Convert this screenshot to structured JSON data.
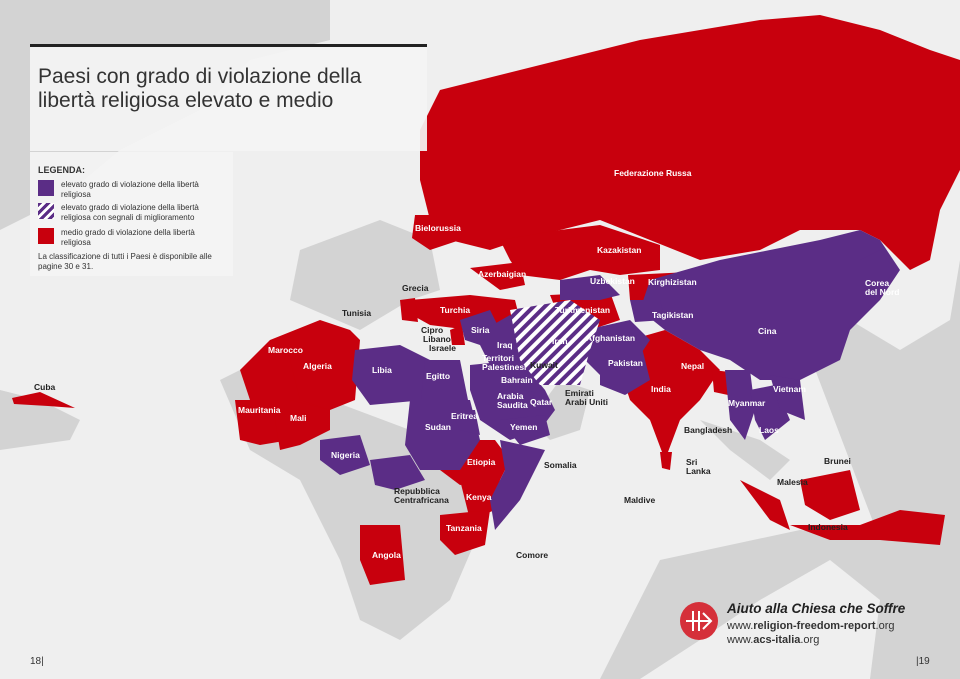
{
  "title": "Paesi con grado di violazione della libertà religiosa elevato e medio",
  "title_lines": [
    "Paesi con grado di violazione della",
    "libertà religiosa elevato e medio"
  ],
  "colors": {
    "high": "#5b2d86",
    "medium": "#c8000d",
    "other_land": "#d3d3d3",
    "sea": "#efefef"
  },
  "legend": {
    "heading": "LEGENDA:",
    "items": [
      {
        "label": "elevato grado di violazione della libertà religiosa",
        "pattern": "solid-purple"
      },
      {
        "label": "elevato grado di violazione della libertà religiosa con segnali di miglioramento",
        "pattern": "striped-purple"
      },
      {
        "label": "medio grado di violazione della libertà religiosa",
        "pattern": "solid-red"
      }
    ],
    "note": "La classificazione di tutti i Paesi è disponibile alle pagine 30 e 31."
  },
  "countries": {
    "high": [
      "Libia",
      "Egitto",
      "Sudan",
      "Eritrea",
      "Nigeria",
      "Somalia",
      "Siria",
      "Iraq",
      "Territori Palestinesi",
      "Arabia Saudita",
      "Yemen",
      "Qatar",
      "Afghanistan",
      "Pakistan",
      "Uzbekistan",
      "Tagikistan",
      "Cina",
      "Corea del Nord",
      "Myanmar",
      "Laos",
      "Vietnam",
      "Maldive",
      "Comore",
      "Repubblica Centrafricana",
      "Emirati Arabi Uniti",
      "Bahrain",
      "Kuwait"
    ],
    "high_improving": [
      "Iran"
    ],
    "medium": [
      "Federazione Russa",
      "Bielorussia",
      "Kazakistan",
      "Azerbaigian",
      "Turkmenistan",
      "Kirghizistan",
      "Turchia",
      "Marocco",
      "Algeria",
      "Mauritania",
      "Mali",
      "Etiopia",
      "Kenya",
      "Tanzania",
      "Angola",
      "India",
      "Nepal",
      "Bangladesh",
      "Sri Lanka",
      "Malesia",
      "Indonesia",
      "Brunei",
      "Cuba",
      "Tunisia",
      "Grecia",
      "Cipro",
      "Libano",
      "Israele"
    ]
  },
  "labels": {
    "russia": "Federazione Russa",
    "belarus": "Bielorussia",
    "kazakh": "Kazakistan",
    "azer": "Azerbaigian",
    "uzbek": "Uzbekistan",
    "kyrg": "Kirghizistan",
    "turkm": "Turkmenistan",
    "tajik": "Tagikistan",
    "korea1": "Corea",
    "korea2": "del Nord",
    "china": "Cina",
    "grecia": "Grecia",
    "tunisia": "Tunisia",
    "turchia": "Turchia",
    "cipro": "Cipro",
    "libano": "Libano",
    "israele": "Israele",
    "siria": "Siria",
    "iraq": "Iraq",
    "iran": "Iran",
    "afgh": "Afghanistan",
    "pak": "Pakistan",
    "terr1": "Territori",
    "terr2": "Palestinesi",
    "kuwait": "Kuwait",
    "bahrain": "Bahrain",
    "arabia1": "Arabia",
    "arabia2": "Saudita",
    "qatar": "Qatar",
    "emir1": "Emirati",
    "emir2": "Arabi Uniti",
    "yemen": "Yemen",
    "marocco": "Marocco",
    "algeria": "Algeria",
    "libia": "Libia",
    "egitto": "Egitto",
    "mauritania": "Mauritania",
    "mali": "Mali",
    "sudan": "Sudan",
    "eritrea": "Eritrea",
    "nigeria": "Nigeria",
    "etiopia": "Etiopia",
    "somalia": "Somalia",
    "rca1": "Repubblica",
    "rca2": "Centrafricana",
    "kenya": "Kenya",
    "tanzania": "Tanzania",
    "angola": "Angola",
    "comore": "Comore",
    "maldive": "Maldive",
    "india": "India",
    "nepal": "Nepal",
    "bangladesh": "Bangladesh",
    "srilanka1": "Sri",
    "srilanka2": "Lanka",
    "myanmar": "Myanmar",
    "laos": "Laos",
    "vietnam": "Vietnam",
    "malesia": "Malesia",
    "brunei": "Brunei",
    "indonesia": "Indonesia",
    "cuba": "Cuba"
  },
  "brand": {
    "name": "Aiuto alla Chiesa che Soffre",
    "url1_pre": "www.",
    "url1_bold": "religion-freedom-report",
    "url1_post": ".org",
    "url2_pre": "www.",
    "url2_bold": "acs-italia",
    "url2_post": ".org"
  },
  "pages": {
    "left": "18",
    "right": "19"
  }
}
